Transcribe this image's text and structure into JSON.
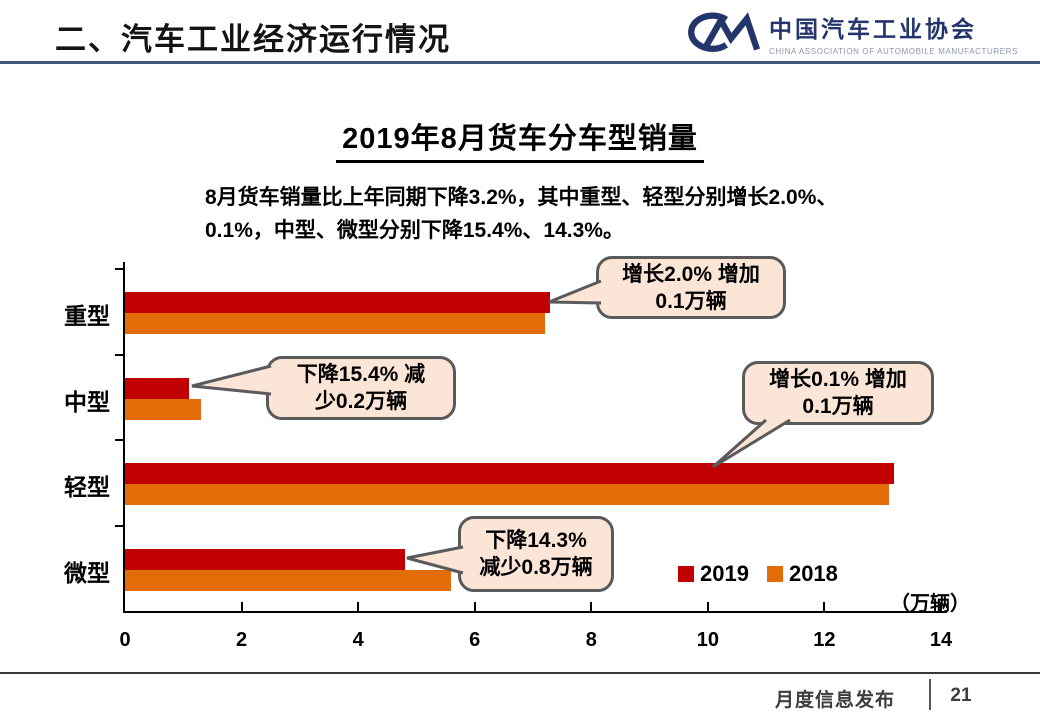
{
  "header": {
    "title": "二、汽车工业经济运行情况",
    "logo": {
      "org_cn": "中国汽车工业协会",
      "org_en": "CHINA  ASSOCIATION  OF  AUTOMOBILE  MANUFACTURERS",
      "mark_color": "#24356B"
    }
  },
  "chart_data": {
    "type": "bar",
    "orientation": "horizontal",
    "title": "2019年8月货车分车型销量",
    "subtitle_line1": "8月货车销量比上年同期下降3.2%，其中重型、轻型分别增长2.0%、",
    "subtitle_line2": "0.1%，中型、微型分别下降15.4%、14.3%。",
    "categories": [
      "重型",
      "中型",
      "轻型",
      "微型"
    ],
    "series": [
      {
        "name": "2019",
        "color": "#C00000",
        "values": [
          7.3,
          1.1,
          13.2,
          4.8
        ]
      },
      {
        "name": "2018",
        "color": "#E36C09",
        "values": [
          7.2,
          1.3,
          13.1,
          5.6
        ]
      }
    ],
    "xlim": [
      0,
      14
    ],
    "x_ticks": [
      "0",
      "2",
      "4",
      "6",
      "8",
      "10",
      "12",
      "14"
    ],
    "unit_label": "（万辆）",
    "grid": false,
    "legend_position": "inside-bottom-right",
    "annotation_fill": "#FBE5D6",
    "annotation_border": "#5A5A5A",
    "annotations": [
      {
        "line1": "增长2.0% 增加",
        "line2": "0.1万辆",
        "target": "重型 2019"
      },
      {
        "line1": "下降15.4% 减",
        "line2": "少0.2万辆",
        "target": "中型 2019"
      },
      {
        "line1": "增长0.1% 增加",
        "line2": "0.1万辆",
        "target": "轻型 2019"
      },
      {
        "line1": "下降14.3%",
        "line2": "减少0.8万辆",
        "target": "微型 2019"
      }
    ]
  },
  "footer": {
    "label": "月度信息发布",
    "page": "21"
  }
}
